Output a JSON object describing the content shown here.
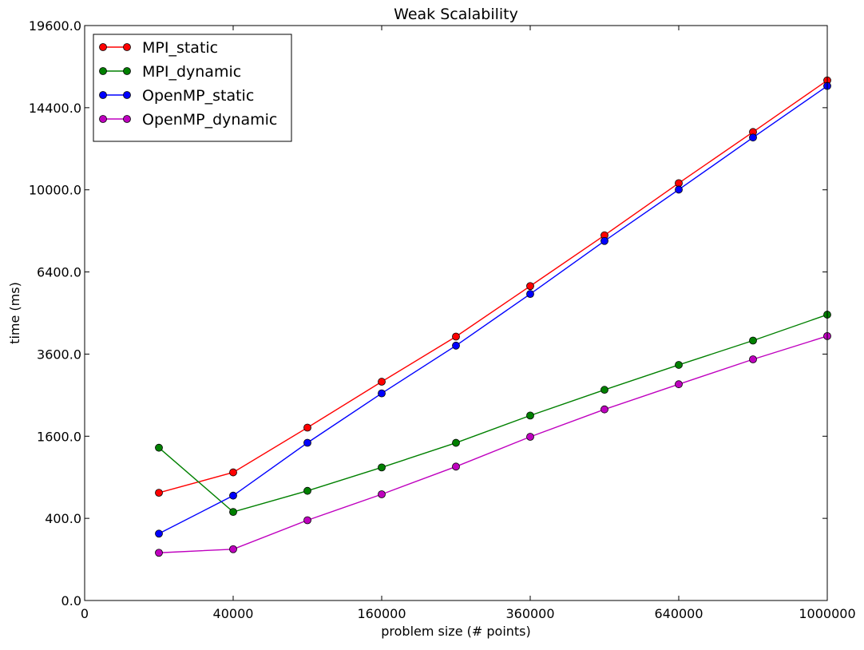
{
  "chart_data": {
    "type": "line",
    "title": "Weak Scalability",
    "xlabel": "problem size (# points)",
    "ylabel": "time (ms)",
    "scale": "sqrt",
    "xlim": [
      0,
      1000000
    ],
    "ylim": [
      0,
      19600
    ],
    "x_ticks": [
      0,
      40000,
      160000,
      360000,
      640000,
      1000000
    ],
    "x_tick_labels": [
      "0",
      "40000",
      "160000",
      "360000",
      "640000",
      "1000000"
    ],
    "y_ticks": [
      0,
      400,
      1600,
      3600,
      6400,
      10000,
      14400,
      19600
    ],
    "y_tick_labels": [
      "0.0",
      "400.0",
      "1600.0",
      "3600.0",
      "6400.0",
      "10000.0",
      "14400.0",
      "19600.0"
    ],
    "grid": false,
    "legend_position": "top-left",
    "x": [
      10000,
      40000,
      90000,
      160000,
      250000,
      360000,
      490000,
      640000,
      810000,
      1000000
    ],
    "series": [
      {
        "name": "MPI_static",
        "color": "#ff0000",
        "values": [
          688,
          973,
          1772,
          2838,
          4130,
          5862,
          7908,
          10328,
          13015,
          16040
        ]
      },
      {
        "name": "MPI_dynamic",
        "color": "#008000",
        "values": [
          1384,
          465,
          713,
          1050,
          1474,
          2028,
          2632,
          3291,
          4006,
          4844
        ]
      },
      {
        "name": "OpenMP_static",
        "color": "#0000ff",
        "values": [
          265,
          652,
          1475,
          2544,
          3852,
          5571,
          7664,
          10010,
          12709,
          15696
        ]
      },
      {
        "name": "OpenMP_dynamic",
        "color": "#bf00bf",
        "values": [
          135,
          156,
          382,
          669,
          1063,
          1589,
          2165,
          2773,
          3448,
          4146
        ]
      }
    ]
  }
}
